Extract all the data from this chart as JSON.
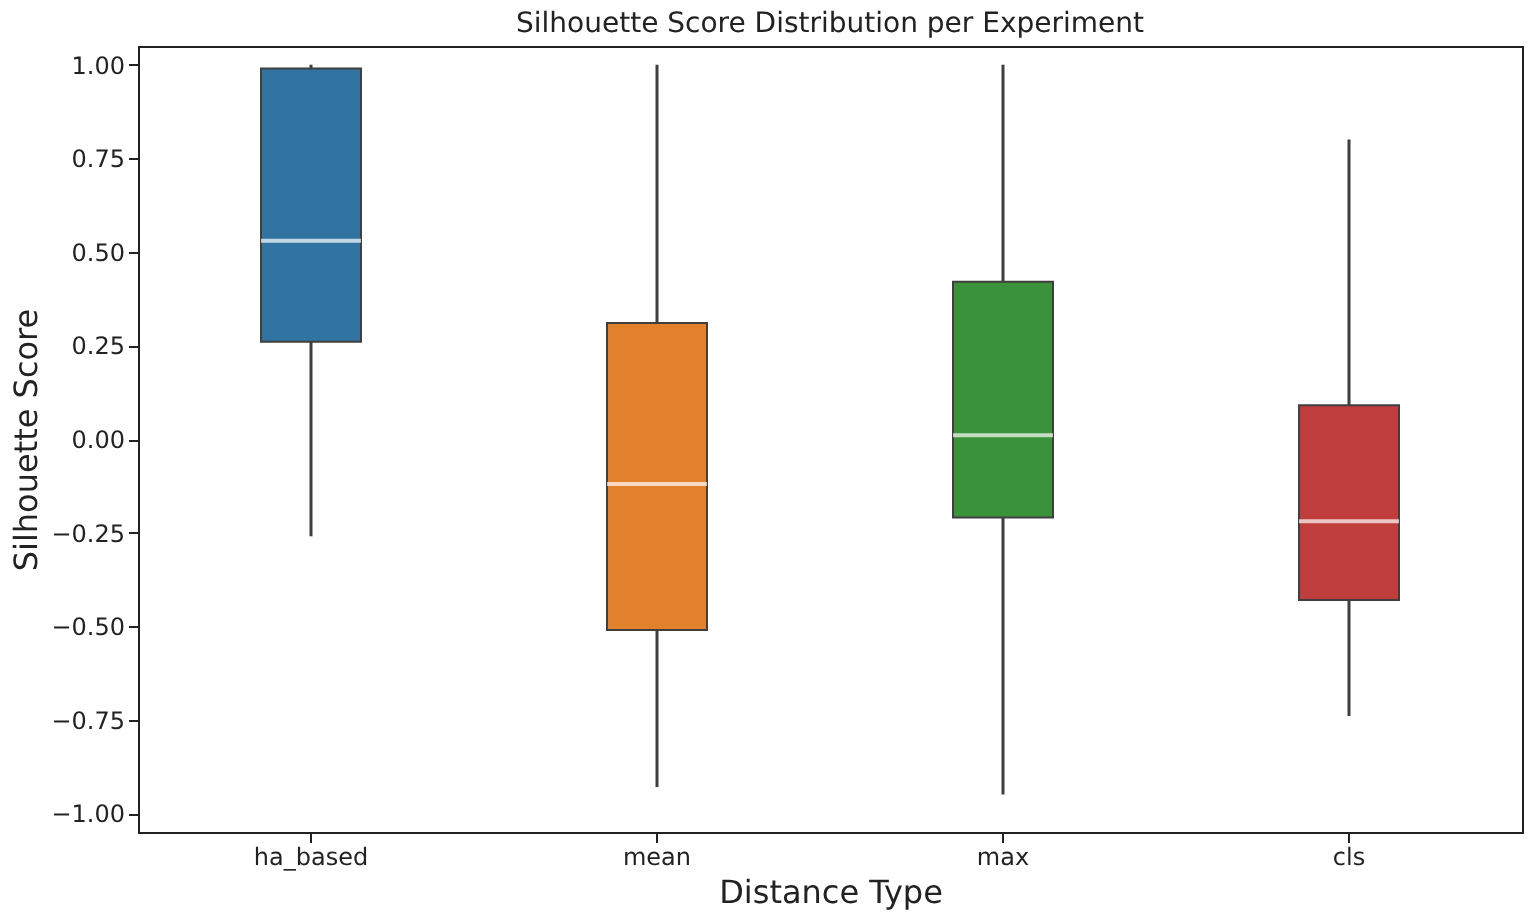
{
  "chart_data": {
    "type": "box",
    "title": "Silhouette Score Distribution per Experiment",
    "xlabel": "Distance Type",
    "ylabel": "Silhouette Score",
    "categories": [
      "ha_based",
      "mean",
      "max",
      "cls"
    ],
    "colors": [
      "#3274a1",
      "#e1812c",
      "#3a923a",
      "#c03d3e"
    ],
    "boxes": [
      {
        "low": -0.26,
        "q1": 0.26,
        "median": 0.53,
        "q3": 0.99,
        "high": 1.0
      },
      {
        "low": -0.93,
        "q1": -0.51,
        "median": -0.12,
        "q3": 0.31,
        "high": 1.0
      },
      {
        "low": -0.95,
        "q1": -0.21,
        "median": 0.01,
        "q3": 0.42,
        "high": 1.0
      },
      {
        "low": -0.74,
        "q1": -0.43,
        "median": -0.22,
        "q3": 0.09,
        "high": 0.8
      }
    ],
    "ylim": [
      -1.05,
      1.05
    ],
    "yticks": [
      {
        "value": -1,
        "label": "−1.00"
      },
      {
        "value": -0.75,
        "label": "−0.75"
      },
      {
        "value": -0.5,
        "label": "−0.50"
      },
      {
        "value": -0.25,
        "label": "−0.25"
      },
      {
        "value": 0,
        "label": "0.00"
      },
      {
        "value": 0.25,
        "label": "0.25"
      },
      {
        "value": 0.5,
        "label": "0.50"
      },
      {
        "value": 0.75,
        "label": "0.75"
      },
      {
        "value": 1,
        "label": "1.00"
      }
    ],
    "grid": false,
    "legend": false
  }
}
